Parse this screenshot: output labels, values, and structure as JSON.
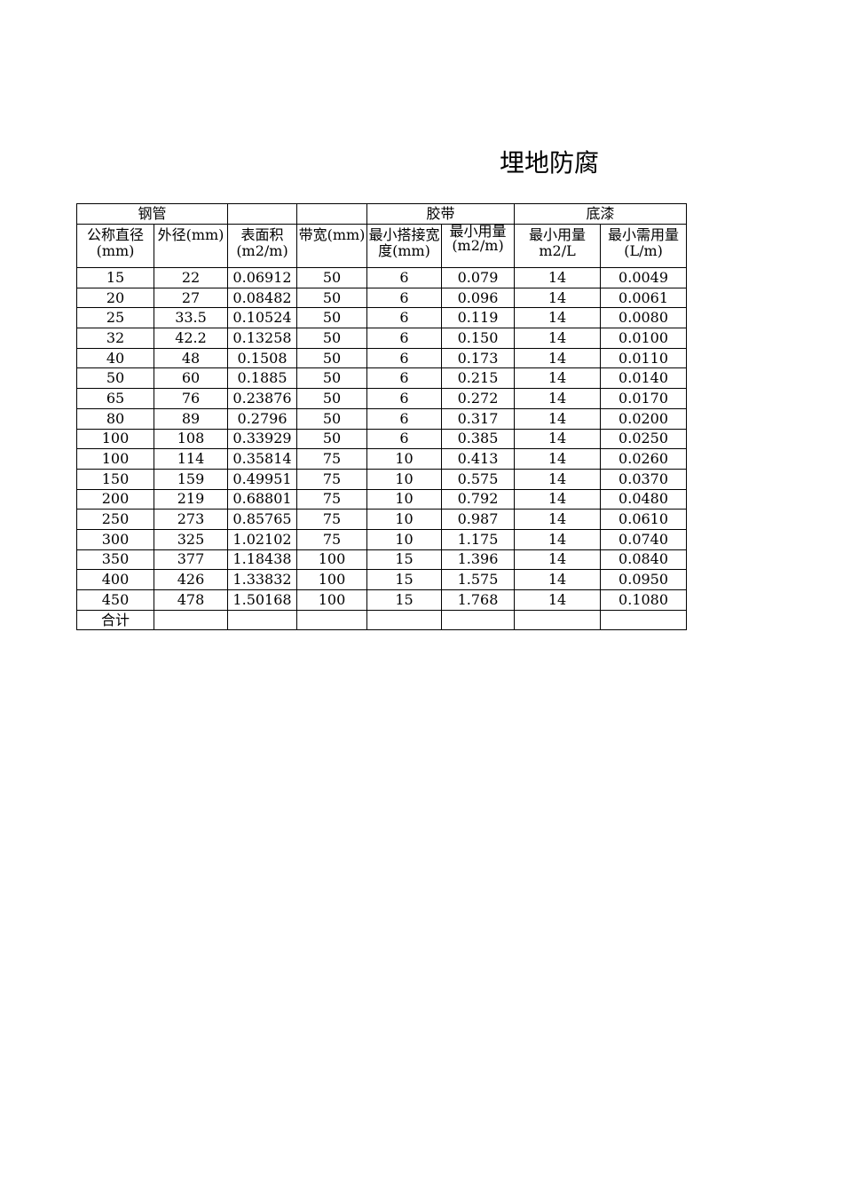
{
  "title": "埋地防腐",
  "group_headers": [
    "钢管",
    "",
    "",
    "胶带",
    "底漆"
  ],
  "column_headers": [
    "公称直径(mm)",
    "外径(mm)",
    "表面积(m2/m)",
    "带宽(mm)",
    "最小搭接宽度(mm)",
    "最小用量(m2/m)",
    "最小用量m2/L",
    "最小需用量(L/m)"
  ],
  "rows": [
    [
      "15",
      "22",
      "0.06912",
      "50",
      "6",
      "0.079",
      "14",
      "0.0049"
    ],
    [
      "20",
      "27",
      "0.08482",
      "50",
      "6",
      "0.096",
      "14",
      "0.0061"
    ],
    [
      "25",
      "33.5",
      "0.10524",
      "50",
      "6",
      "0.119",
      "14",
      "0.0080"
    ],
    [
      "32",
      "42.2",
      "0.13258",
      "50",
      "6",
      "0.150",
      "14",
      "0.0100"
    ],
    [
      "40",
      "48",
      "0.1508",
      "50",
      "6",
      "0.173",
      "14",
      "0.0110"
    ],
    [
      "50",
      "60",
      "0.1885",
      "50",
      "6",
      "0.215",
      "14",
      "0.0140"
    ],
    [
      "65",
      "76",
      "0.23876",
      "50",
      "6",
      "0.272",
      "14",
      "0.0170"
    ],
    [
      "80",
      "89",
      "0.2796",
      "50",
      "6",
      "0.317",
      "14",
      "0.0200"
    ],
    [
      "100",
      "108",
      "0.33929",
      "50",
      "6",
      "0.385",
      "14",
      "0.0250"
    ],
    [
      "100",
      "114",
      "0.35814",
      "75",
      "10",
      "0.413",
      "14",
      "0.0260"
    ],
    [
      "150",
      "159",
      "0.49951",
      "75",
      "10",
      "0.575",
      "14",
      "0.0370"
    ],
    [
      "200",
      "219",
      "0.68801",
      "75",
      "10",
      "0.792",
      "14",
      "0.0480"
    ],
    [
      "250",
      "273",
      "0.85765",
      "75",
      "10",
      "0.987",
      "14",
      "0.0610"
    ],
    [
      "300",
      "325",
      "1.02102",
      "75",
      "10",
      "1.175",
      "14",
      "0.0740"
    ],
    [
      "350",
      "377",
      "1.18438",
      "100",
      "15",
      "1.396",
      "14",
      "0.0840"
    ],
    [
      "400",
      "426",
      "1.33832",
      "100",
      "15",
      "1.575",
      "14",
      "0.0950"
    ],
    [
      "450",
      "478",
      "1.50168",
      "100",
      "15",
      "1.768",
      "14",
      "0.1080"
    ]
  ],
  "total_label": "合计"
}
